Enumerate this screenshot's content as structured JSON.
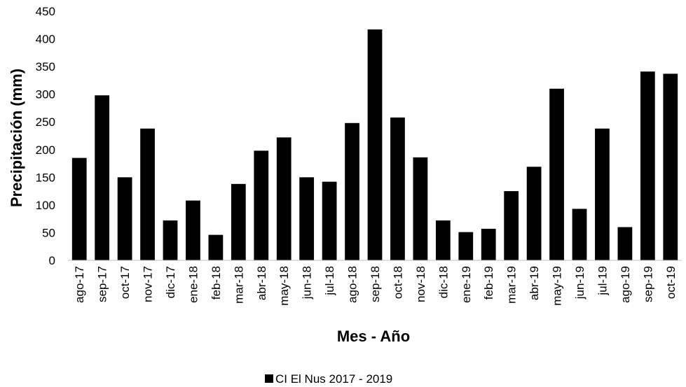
{
  "chart_data": {
    "type": "bar",
    "xlabel": "Mes - Año",
    "ylabel": "Precipitación (mm)",
    "ylim": [
      0,
      450
    ],
    "yticks": [
      0,
      50,
      100,
      150,
      200,
      250,
      300,
      350,
      400,
      450
    ],
    "grid": false,
    "legend_position": "bottom",
    "bar_color": "#000000",
    "categories": [
      "ago-17",
      "sep-17",
      "oct-17",
      "nov-17",
      "dic-17",
      "ene-18",
      "feb-18",
      "mar-18",
      "abr-18",
      "may-18",
      "jun-18",
      "jul-18",
      "ago-18",
      "sep-18",
      "oct-18",
      "nov-18",
      "dic-18",
      "ene-19",
      "feb-19",
      "mar-19",
      "abr-19",
      "may-19",
      "jun-19",
      "jul-19",
      "ago-19",
      "sep-19",
      "oct-19"
    ],
    "series": [
      {
        "name": "CI El Nus 2017 - 2019",
        "values": [
          185,
          298,
          150,
          238,
          72,
          108,
          46,
          138,
          198,
          222,
          150,
          142,
          248,
          417,
          258,
          186,
          72,
          51,
          57,
          125,
          169,
          310,
          93,
          238,
          60,
          341,
          337
        ]
      }
    ]
  }
}
